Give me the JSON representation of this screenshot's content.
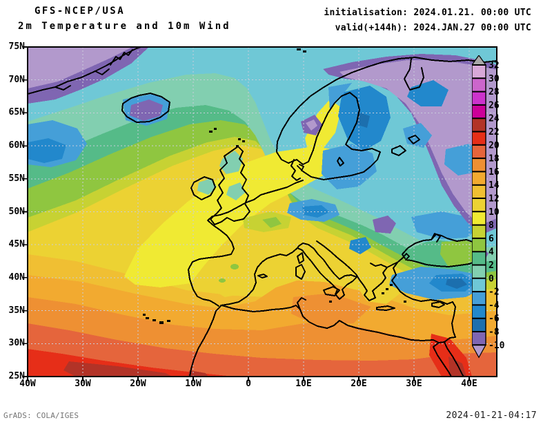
{
  "header": {
    "model": "GFS-NCEP/USA",
    "subtitle": "2m Temperature and 10m Wind",
    "init_line": "initialisation: 2024.01.21. 00:00 UTC",
    "valid_line": "valid(+144h): 2024.JAN.27 00:00 UTC"
  },
  "axes": {
    "lat_ticks": [
      "75N",
      "70N",
      "65N",
      "60N",
      "55N",
      "50N",
      "45N",
      "40N",
      "35N",
      "30N",
      "25N"
    ],
    "lon_ticks": [
      "40W",
      "30W",
      "20W",
      "10W",
      "0",
      "10E",
      "20E",
      "30E",
      "40E"
    ]
  },
  "colorbar": {
    "levels": [
      32,
      30,
      28,
      26,
      24,
      22,
      20,
      18,
      16,
      14,
      12,
      10,
      8,
      6,
      4,
      2,
      0,
      -2,
      -4,
      -6,
      -8,
      -10
    ],
    "segment_colors_top_to_bottom": [
      "#d8a8d8",
      "#cc66cc",
      "#cc33cc",
      "#cc0099",
      "#b23327",
      "#e62e18",
      "#e5653c",
      "#ee9033",
      "#f2aa30",
      "#f0bf33",
      "#ecd233",
      "#f0ea33",
      "#c7d233",
      "#8fc640",
      "#55bb88",
      "#82cfb0",
      "#6fc8d6",
      "#459fd8",
      "#2288cc",
      "#1c6fae",
      "#7f66b2"
    ],
    "over_color": "#a8a8a8",
    "under_color": "#b299cc"
  },
  "footer": {
    "credit": "GrADS: COLA/IGES",
    "timestamp": "2024-01-21-04:17"
  }
}
